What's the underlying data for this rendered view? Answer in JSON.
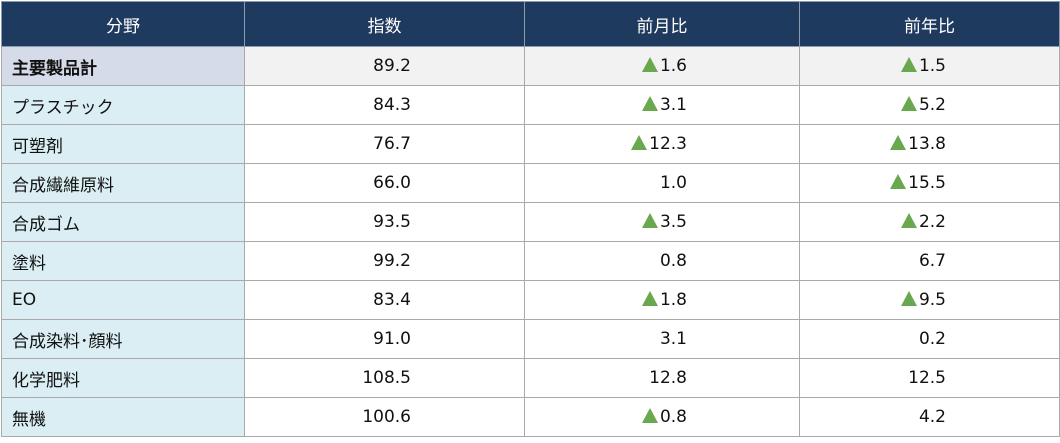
{
  "headers": [
    "分野",
    "指数",
    "前月比",
    "前年比"
  ],
  "rows": [
    {
      "field": "主要製品計",
      "index": "89.2",
      "mom": "1.6",
      "mom_up": true,
      "yoy": "1.5",
      "yoy_up": true
    },
    {
      "field": "プラスチック",
      "index": "84.3",
      "mom": "3.1",
      "mom_up": true,
      "yoy": "5.2",
      "yoy_up": true
    },
    {
      "field": "可塑剤",
      "index": "76.7",
      "mom": "12.3",
      "mom_up": true,
      "yoy": "13.8",
      "yoy_up": true
    },
    {
      "field": "合成繊維原料",
      "index": "66.0",
      "mom": "1.0",
      "mom_up": false,
      "yoy": "15.5",
      "yoy_up": true
    },
    {
      "field": "合成ゴム",
      "index": "93.5",
      "mom": "3.5",
      "mom_up": true,
      "yoy": "2.2",
      "yoy_up": true
    },
    {
      "field": "塗料",
      "index": "99.2",
      "mom": "0.8",
      "mom_up": false,
      "yoy": "6.7",
      "yoy_up": false
    },
    {
      "field": "EO",
      "index": "83.4",
      "mom": "1.8",
      "mom_up": true,
      "yoy": "9.5",
      "yoy_up": true
    },
    {
      "field": "合成染料･顔料",
      "index": "91.0",
      "mom": "3.1",
      "mom_up": false,
      "yoy": "0.2",
      "yoy_up": false
    },
    {
      "field": "化学肥料",
      "index": "108.5",
      "mom": "12.8",
      "mom_up": false,
      "yoy": "12.5",
      "yoy_up": false
    },
    {
      "field": "無機",
      "index": "100.6",
      "mom": "0.8",
      "mom_up": true,
      "yoy": "4.2",
      "yoy_up": false
    }
  ],
  "colors": {
    "header_bg": "#1f3a5f",
    "field_bg": "#daeef3",
    "total_field_bg": "#d6dbe9",
    "total_row_bg": "#f2f2f2",
    "up_triangle": "#6aa84f"
  },
  "icons": {
    "up": "green-up-triangle-icon"
  }
}
